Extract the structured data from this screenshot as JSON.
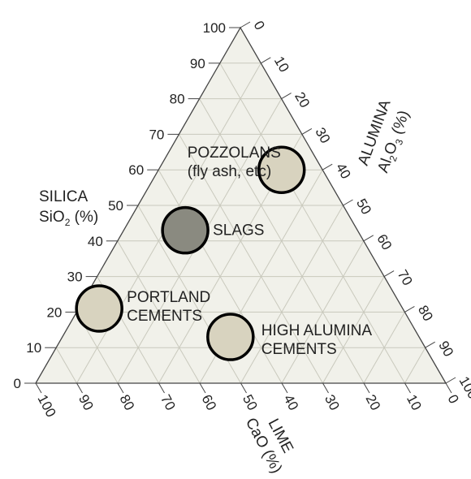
{
  "chart_data": {
    "type": "ternary",
    "axes": {
      "left": {
        "name": "SILICA",
        "formula_main": "SiO",
        "formula_sub": "2",
        "formula_unit": " (%)"
      },
      "right": {
        "name": "ALUMINA",
        "formula_main": "Al",
        "formula_sub1": "2",
        "formula_mid": "O",
        "formula_sub2": "3",
        "formula_unit": " (%)"
      },
      "bottom": {
        "name": "LIME",
        "formula": "CaO (%)"
      }
    },
    "ticks": [
      0,
      10,
      20,
      30,
      40,
      50,
      60,
      70,
      80,
      90,
      100
    ],
    "grid": true,
    "regions": [
      {
        "id": "pozzolans",
        "lines": [
          "POZZOLANS",
          "(fly ash, etc)"
        ],
        "silica": 60,
        "alumina": 30,
        "lime": 10,
        "fill": "#d8d3bf"
      },
      {
        "id": "slags",
        "lines": [
          "SLAGS"
        ],
        "silica": 43,
        "alumina": 15,
        "lime": 42,
        "fill": "#8a8a80"
      },
      {
        "id": "portland",
        "lines": [
          "PORTLAND",
          "CEMENTS"
        ],
        "silica": 21,
        "alumina": 5,
        "lime": 74,
        "fill": "#d8d3bf"
      },
      {
        "id": "high-alumina",
        "lines": [
          "HIGH ALUMINA",
          "CEMENTS"
        ],
        "silica": 13,
        "alumina": 41,
        "lime": 46,
        "fill": "#d8d3bf"
      }
    ],
    "colors": {
      "triangle_fill": "#f1f1ea",
      "grid": "#c9c9bd",
      "outline": "#444444",
      "circle_stroke": "#000000"
    }
  }
}
